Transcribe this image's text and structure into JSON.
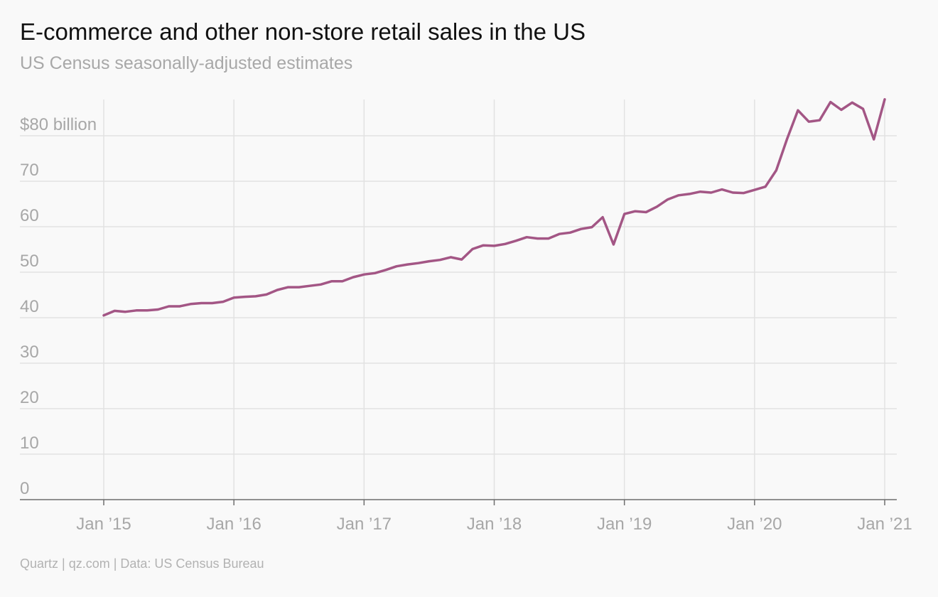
{
  "title": "E-commerce and other non-store retail sales in the US",
  "subtitle": "US Census seasonally-adjusted estimates",
  "footer": "Quartz | qz.com | Data: US Census Bureau",
  "colors": {
    "line": "#a35685",
    "grid": "#e2e2e2",
    "axis": "#6e6e6e",
    "tick_text": "#a7a7a7"
  },
  "chart_data": {
    "type": "line",
    "title": "E-commerce and other non-store retail sales in the US",
    "subtitle": "US Census seasonally-adjusted estimates",
    "xlabel": "",
    "ylabel": "",
    "ylim": [
      0,
      88
    ],
    "y_ticks": [
      0,
      10,
      20,
      30,
      40,
      50,
      60,
      70,
      80
    ],
    "y_tick_labels": [
      "0",
      "10",
      "20",
      "30",
      "40",
      "50",
      "60",
      "70",
      "$80 billion"
    ],
    "x_ticks": [
      "2015-01",
      "2016-01",
      "2017-01",
      "2018-01",
      "2019-01",
      "2020-01",
      "2021-01"
    ],
    "x_tick_labels": [
      "Jan ’15",
      "Jan ’16",
      "Jan ’17",
      "Jan ’18",
      "Jan ’19",
      "Jan ’20",
      "Jan ’21"
    ],
    "grid": true,
    "legend": "none",
    "series": [
      {
        "x": [
          "2015-01",
          "2015-02",
          "2015-03",
          "2015-04",
          "2015-05",
          "2015-06",
          "2015-07",
          "2015-08",
          "2015-09",
          "2015-10",
          "2015-11",
          "2015-12",
          "2016-01",
          "2016-02",
          "2016-03",
          "2016-04",
          "2016-05",
          "2016-06",
          "2016-07",
          "2016-08",
          "2016-09",
          "2016-10",
          "2016-11",
          "2016-12",
          "2017-01",
          "2017-02",
          "2017-03",
          "2017-04",
          "2017-05",
          "2017-06",
          "2017-07",
          "2017-08",
          "2017-09",
          "2017-10",
          "2017-11",
          "2017-12",
          "2018-01",
          "2018-02",
          "2018-03",
          "2018-04",
          "2018-05",
          "2018-06",
          "2018-07",
          "2018-08",
          "2018-09",
          "2018-10",
          "2018-11",
          "2018-12",
          "2019-01",
          "2019-02",
          "2019-03",
          "2019-04",
          "2019-05",
          "2019-06",
          "2019-07",
          "2019-08",
          "2019-09",
          "2019-10",
          "2019-11",
          "2019-12",
          "2020-01",
          "2020-02",
          "2020-03",
          "2020-04",
          "2020-05",
          "2020-06",
          "2020-07",
          "2020-08",
          "2020-09",
          "2020-10",
          "2020-11",
          "2020-12",
          "2021-01"
        ],
        "values": [
          40.5,
          41.5,
          41.3,
          41.6,
          41.6,
          41.8,
          42.5,
          42.5,
          43.0,
          43.2,
          43.2,
          43.5,
          44.4,
          44.6,
          44.7,
          45.1,
          46.1,
          46.7,
          46.7,
          47.0,
          47.3,
          48.0,
          48.0,
          48.9,
          49.5,
          49.8,
          50.5,
          51.3,
          51.7,
          52.0,
          52.4,
          52.7,
          53.3,
          52.8,
          55.1,
          55.9,
          55.8,
          56.2,
          56.9,
          57.7,
          57.4,
          57.4,
          58.4,
          58.7,
          59.5,
          59.9,
          62.1,
          56.1,
          62.8,
          63.4,
          63.2,
          64.4,
          66.0,
          66.9,
          67.2,
          67.7,
          67.5,
          68.2,
          67.5,
          67.4,
          68.1,
          68.8,
          72.4,
          79.3,
          85.6,
          83.1,
          83.4,
          87.4,
          85.7,
          87.3,
          85.9,
          79.2,
          88.0
        ]
      }
    ]
  }
}
